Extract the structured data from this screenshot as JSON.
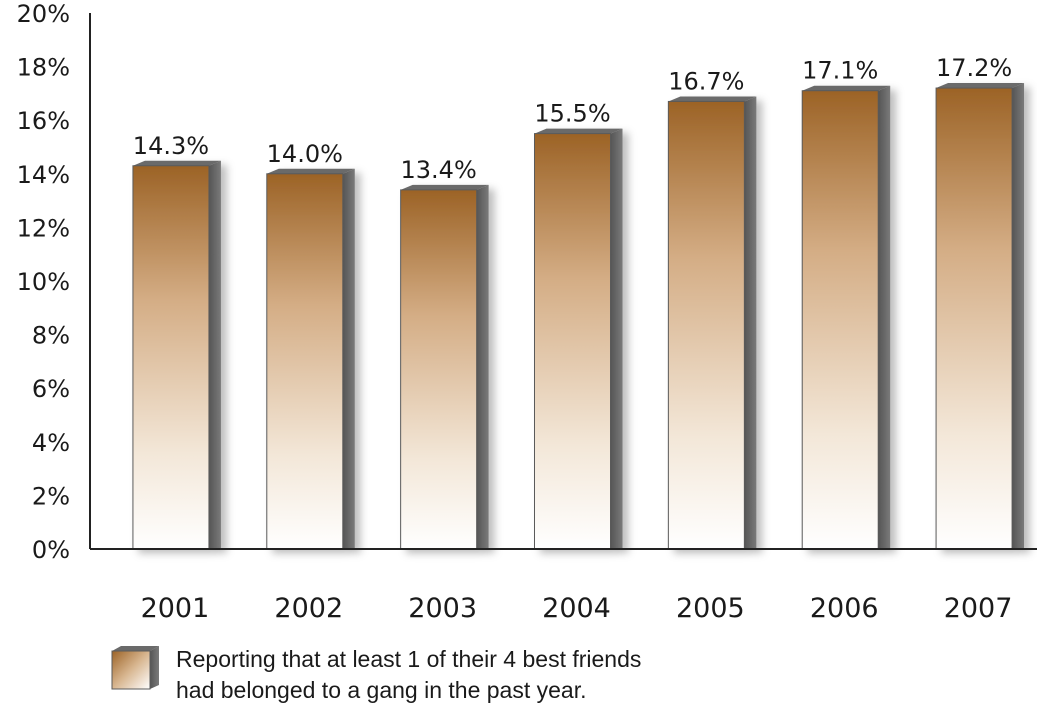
{
  "chart_data": {
    "type": "bar",
    "categories": [
      "2001",
      "2002",
      "2003",
      "2004",
      "2005",
      "2006",
      "2007"
    ],
    "series": [
      {
        "values": [
          14.3,
          14.0,
          13.4,
          15.5,
          16.7,
          17.1,
          17.2
        ],
        "data_labels": [
          "14.3%",
          "14.0%",
          "13.4%",
          "15.5%",
          "16.7%",
          "17.1%",
          "17.2%"
        ]
      }
    ],
    "ylim": [
      0,
      20
    ],
    "yticks": [
      0,
      2,
      4,
      6,
      8,
      10,
      12,
      14,
      16,
      18,
      20
    ],
    "ytick_labels": [
      "0%",
      "2%",
      "4%",
      "6%",
      "8%",
      "10%",
      "12%",
      "14%",
      "16%",
      "18%",
      "20%"
    ],
    "grid": false,
    "legend": {
      "placement": "bottom-left",
      "lines": [
        "Reporting that at least 1 of their 4 best friends",
        "had belonged to a gang in the past year."
      ]
    },
    "colors": {
      "bar_top": "#9c6326",
      "bar_mid": "#d8b690",
      "bar_bottom": "#ffffff",
      "bar_side": "#606060",
      "axis": "#222222"
    }
  }
}
